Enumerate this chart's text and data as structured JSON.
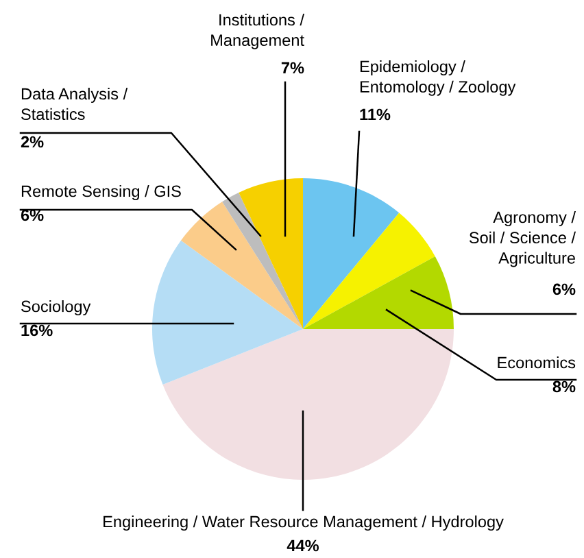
{
  "chart_data": {
    "type": "pie",
    "categories": [
      "Epidemiology /\nEntomology / Zoology",
      "Agronomy /\nSoil / Science /\nAgriculture",
      "Economics",
      "Engineering / Water Resource Management / Hydrology",
      "Sociology",
      "Remote Sensing / GIS",
      "Data Analysis /\nStatistics",
      "Institutions /\nManagement"
    ],
    "values": [
      11,
      6,
      8,
      44,
      16,
      6,
      2,
      7
    ],
    "colors": [
      "#6cc5f0",
      "#f6f200",
      "#b3d900",
      "#f2dfe2",
      "#b5ddf5",
      "#fbcc8a",
      "#bdbdbd",
      "#f6d000"
    ],
    "value_labels": [
      "11%",
      "6%",
      "8%",
      "44%",
      "16%",
      "6%",
      "2%",
      "7%"
    ]
  }
}
